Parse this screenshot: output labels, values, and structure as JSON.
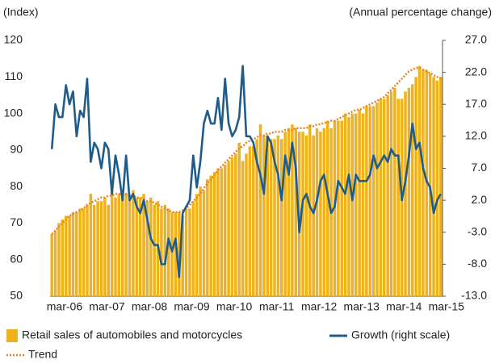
{
  "chart_data": {
    "type": "combo",
    "y_label": "(Index)",
    "y2_label": "(Annual percentage change)",
    "categories": [
      null,
      null,
      "mar-06",
      null,
      null,
      null,
      null,
      null,
      null,
      null,
      null,
      null,
      null,
      null,
      "mar-07",
      null,
      null,
      null,
      null,
      null,
      null,
      null,
      null,
      null,
      null,
      null,
      "mar-08",
      null,
      null,
      null,
      null,
      null,
      null,
      null,
      null,
      null,
      null,
      null,
      "mar-09",
      null,
      null,
      null,
      null,
      null,
      null,
      null,
      null,
      null,
      null,
      null,
      "mar-10",
      null,
      null,
      null,
      null,
      null,
      null,
      null,
      null,
      null,
      null,
      null,
      "mar-11",
      null,
      null,
      null,
      null,
      null,
      null,
      null,
      null,
      null,
      null,
      null,
      "mar-12",
      null,
      null,
      null,
      null,
      null,
      null,
      null,
      null,
      null,
      null,
      null,
      "mar-13",
      null,
      null,
      null,
      null,
      null,
      null,
      null,
      null,
      null,
      null,
      null,
      "mar-14",
      null,
      null,
      null,
      null,
      null,
      null,
      null,
      null,
      null,
      null,
      null,
      "mar-15"
    ],
    "series": [
      {
        "name": "Retail sales of automobiles and motorcycles",
        "type": "bar",
        "color": "#efb21b",
        "values": [
          67,
          68,
          70,
          71,
          72,
          72,
          73,
          73,
          74,
          74,
          75,
          78,
          75,
          76,
          76,
          77,
          75,
          79,
          77,
          78,
          77,
          78,
          78,
          79,
          77,
          77,
          78,
          76,
          77,
          75,
          76,
          74,
          75,
          74,
          73,
          73,
          73,
          72,
          74,
          74,
          76,
          78,
          80,
          79,
          82,
          83,
          84,
          85,
          85,
          86,
          87,
          88,
          89,
          92,
          87,
          89,
          91,
          91,
          93,
          97,
          94,
          94,
          93,
          93,
          94,
          93,
          95,
          96,
          97,
          96,
          95,
          95,
          94,
          97,
          94,
          96,
          95,
          96,
          98,
          96,
          98,
          98,
          98,
          100,
          99,
          100,
          100,
          101,
          100,
          102,
          102,
          102,
          103,
          104,
          104,
          105,
          106,
          107,
          104,
          104,
          106,
          107,
          108,
          110,
          113,
          112,
          112,
          111,
          110,
          109,
          110
        ]
      },
      {
        "name": "Growth (right scale)",
        "type": "line",
        "axis": "y2",
        "color": "#1f5c8a",
        "values": [
          10,
          17,
          15,
          15,
          20,
          17,
          19,
          12,
          16,
          15,
          21,
          8,
          11,
          10,
          7,
          11,
          10,
          3,
          9,
          6,
          2,
          9,
          2,
          3,
          1,
          0,
          2,
          -1,
          -4,
          -5,
          -5,
          -8,
          -8,
          -4,
          -6,
          -4,
          -10,
          0,
          1,
          2,
          9,
          4,
          8,
          14,
          16,
          14,
          14,
          18,
          13,
          21,
          14,
          12,
          13,
          15,
          23,
          12,
          12,
          11,
          8,
          6,
          3,
          12,
          11,
          8,
          6,
          2,
          9,
          6,
          11,
          7,
          -3,
          2,
          3,
          1,
          0,
          2,
          5,
          6,
          3,
          0,
          1,
          5,
          4,
          3,
          6,
          2,
          6,
          5,
          5,
          5,
          6,
          9,
          7,
          8,
          9,
          8,
          10,
          9,
          9,
          2,
          5,
          9,
          14,
          10,
          11,
          7,
          5,
          4,
          0,
          2,
          3
        ]
      },
      {
        "name": "Trend",
        "type": "line",
        "style": "dotted",
        "color": "#e8842a",
        "values": [
          67,
          68,
          69,
          70,
          71,
          72,
          72.5,
          73,
          73.5,
          74,
          75,
          75.5,
          76,
          76.5,
          77,
          77,
          77.5,
          77.5,
          78,
          78,
          78,
          78,
          77.5,
          77.5,
          77,
          77,
          76.5,
          76,
          76,
          75.5,
          75,
          74.5,
          74,
          73.5,
          73,
          73,
          73,
          73.5,
          74,
          75,
          76,
          77,
          78,
          79.5,
          81,
          82,
          83,
          84.5,
          85.5,
          86.5,
          87.5,
          88.5,
          89.5,
          90.5,
          91,
          92,
          92.5,
          93,
          93.5,
          94,
          94,
          94.5,
          94.5,
          95,
          95,
          95,
          95.5,
          95.5,
          95.5,
          96,
          96,
          96,
          96,
          96.5,
          96.5,
          97,
          97,
          97.5,
          97.5,
          98,
          98,
          98.5,
          99,
          99.5,
          100,
          100.5,
          101,
          101,
          101.5,
          102,
          102.5,
          103,
          103.5,
          104,
          104.5,
          105.5,
          106.5,
          107.5,
          108.5,
          109.5,
          110.5,
          111.5,
          112,
          112.5,
          112.5,
          112,
          111.5,
          111,
          110.5,
          110,
          109.5
        ]
      }
    ],
    "ylim": [
      50,
      120
    ],
    "yticks": [
      50,
      60,
      70,
      80,
      90,
      100,
      110,
      120
    ],
    "y2lim": [
      -13,
      27
    ],
    "y2ticks": [
      {
        "value": -13,
        "label": "-13.0"
      },
      {
        "value": -8,
        "label": "-8.0"
      },
      {
        "value": -3,
        "label": "-3.0"
      },
      {
        "value": 2,
        "label": "2.0"
      },
      {
        "value": 7,
        "label": "7.0"
      },
      {
        "value": 12,
        "label": "12.0"
      },
      {
        "value": 17,
        "label": "17.0"
      },
      {
        "value": 22,
        "label": "22.0"
      },
      {
        "value": 27,
        "label": "27.0"
      }
    ],
    "grid": false
  }
}
